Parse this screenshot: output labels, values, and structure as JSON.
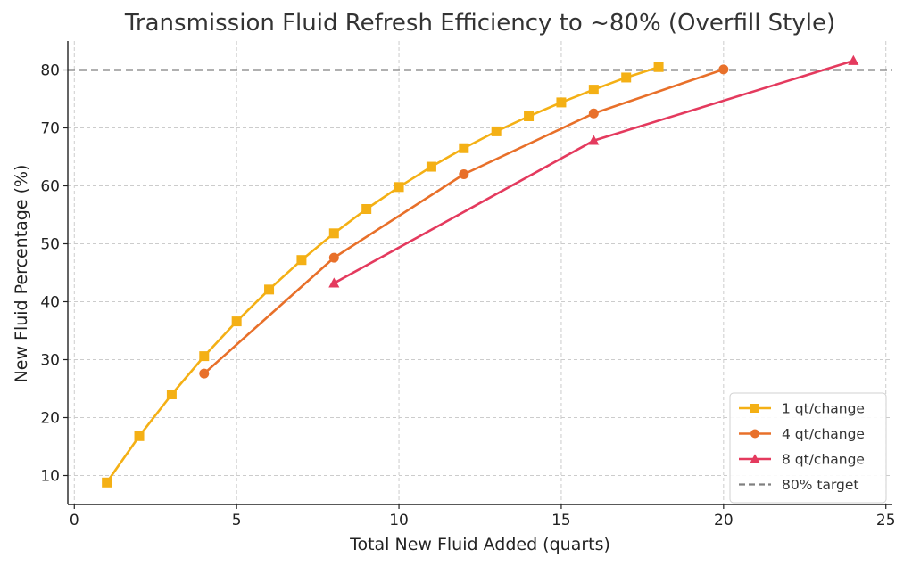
{
  "chart_data": {
    "type": "line",
    "title": "Transmission Fluid Refresh Efficiency to ~80% (Overfill Style)",
    "xlabel": "Total New Fluid Added (quarts)",
    "ylabel": "New Fluid Percentage (%)",
    "xlim": [
      -0.2,
      25.2
    ],
    "ylim": [
      5,
      85
    ],
    "xticks": [
      0,
      5,
      10,
      15,
      20,
      25
    ],
    "yticks": [
      10,
      20,
      30,
      40,
      50,
      60,
      70,
      80
    ],
    "grid": true,
    "legend_position": "lower-right",
    "series": [
      {
        "name": "1 qt/change",
        "color": "#f4b015",
        "marker": "square",
        "x": [
          1,
          2,
          3,
          4,
          5,
          6,
          7,
          8,
          9,
          10,
          11,
          12,
          13,
          14,
          15,
          16,
          17,
          18
        ],
        "y": [
          8.8,
          16.8,
          24.0,
          30.6,
          36.6,
          42.1,
          47.2,
          51.8,
          56.0,
          59.8,
          63.3,
          66.5,
          69.4,
          72.0,
          74.4,
          76.6,
          78.7,
          80.5
        ]
      },
      {
        "name": "4 qt/change",
        "color": "#e8702a",
        "marker": "circle",
        "x": [
          4,
          8,
          12,
          16,
          20
        ],
        "y": [
          27.6,
          47.6,
          62.0,
          72.5,
          80.1
        ]
      },
      {
        "name": "8 qt/change",
        "color": "#e43a5e",
        "marker": "triangle",
        "x": [
          8,
          16,
          24
        ],
        "y": [
          43.2,
          67.8,
          81.6
        ]
      }
    ],
    "reference_lines": [
      {
        "name": "80% target",
        "y": 80,
        "color": "#808080",
        "style": "dashed"
      }
    ]
  }
}
